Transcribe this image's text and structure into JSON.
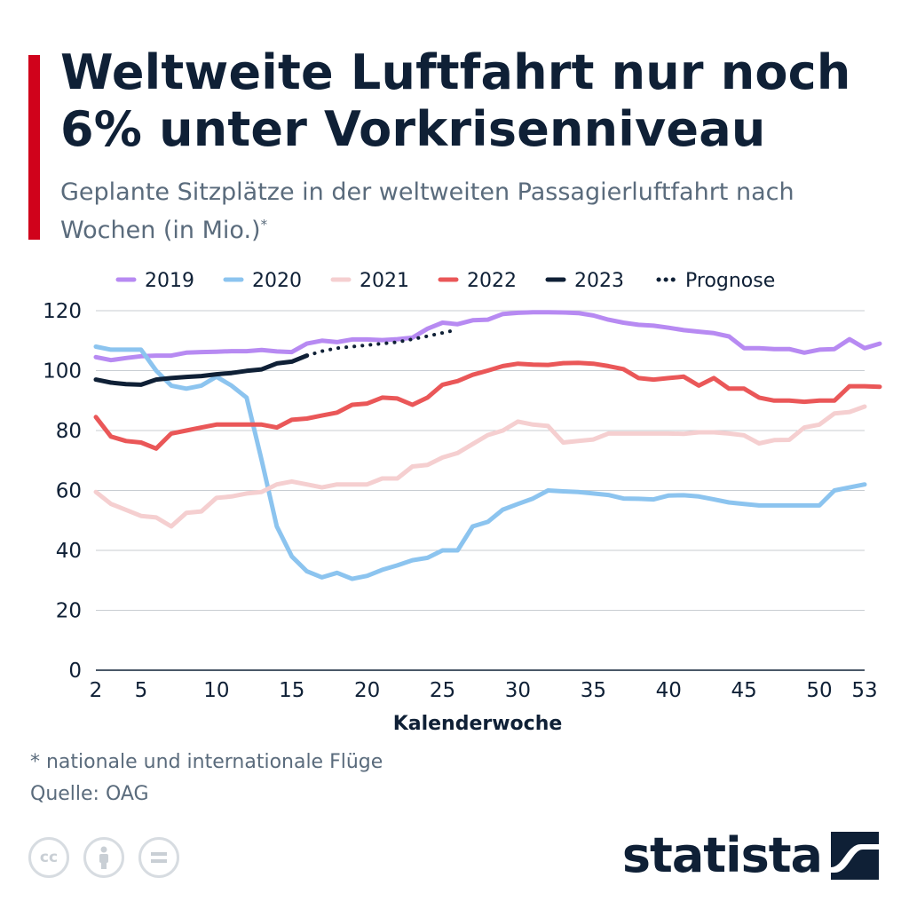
{
  "header": {
    "title": "Weltweite Luftfahrt nur noch 6% unter Vorkrisenniveau",
    "subtitle": "Geplante Sitzplätze in der weltweiten Passagierluftfahrt nach Wochen (in Mio.)",
    "subtitle_marker": "*"
  },
  "footer": {
    "footnote": "* nationale und internationale Flüge",
    "source": "Quelle: OAG",
    "brand": "statista",
    "license_icons": [
      "cc",
      "by",
      "nd"
    ]
  },
  "colors": {
    "accent": "#d0021b",
    "2019": "#b78af2",
    "2020": "#8cc4ef",
    "2021": "#f5cfd0",
    "2022": "#ea5758",
    "2023": "#0f2036",
    "Prognose": "#0f2036"
  },
  "chart_data": {
    "type": "line",
    "title": "Weltweite Luftfahrt nur noch 6% unter Vorkrisenniveau",
    "xlabel": "Kalenderwoche",
    "ylabel": "",
    "xlim": [
      2,
      53
    ],
    "ylim": [
      0,
      120
    ],
    "grid": true,
    "legend_position": "top",
    "x_ticks": [
      2,
      5,
      10,
      15,
      20,
      25,
      30,
      35,
      40,
      45,
      50,
      53
    ],
    "y_ticks": [
      0,
      20,
      40,
      60,
      80,
      100,
      120
    ],
    "series": [
      {
        "name": "2019",
        "x_start": 2,
        "values": [
          104.5,
          103.5,
          104.2,
          104.8,
          105,
          105,
          106,
          106.2,
          106.3,
          106.5,
          106.5,
          106.9,
          106.4,
          106.2,
          109,
          110,
          109.5,
          110.4,
          110.4,
          110.2,
          110.5,
          111,
          114,
          116,
          115.5,
          116.8,
          117,
          118.9,
          119.3,
          119.5,
          119.5,
          119.4,
          119.2,
          118.4,
          117,
          116,
          115.3,
          115,
          114.3,
          113.5,
          113,
          112.5,
          111.4,
          107.5,
          107.5,
          107.2,
          107.2,
          106,
          107,
          107.2,
          110.5,
          107.5,
          109
        ]
      },
      {
        "name": "2020",
        "x_start": 2,
        "values": [
          108,
          107,
          107,
          107,
          100,
          95,
          94,
          95,
          98,
          95,
          91,
          70,
          48,
          38,
          33,
          31,
          32.5,
          30.5,
          31.5,
          33.5,
          35,
          36.7,
          37.5,
          40,
          40,
          48,
          49.5,
          53.6,
          55.5,
          57.3,
          60,
          59.7,
          59.5,
          59,
          58.5,
          57.3,
          57.2,
          57,
          58.3,
          58.4,
          58,
          57,
          56,
          55.5,
          55,
          55,
          55,
          55,
          55,
          60,
          61,
          62
        ]
      },
      {
        "name": "2021",
        "x_start": 2,
        "values": [
          59.5,
          55.5,
          53.5,
          51.5,
          51,
          48,
          52.5,
          53,
          57.5,
          58,
          59,
          59.5,
          62,
          63,
          62,
          61,
          62,
          62,
          62,
          64,
          64,
          68,
          68.5,
          71,
          72.5,
          75.5,
          78.5,
          80,
          83,
          82,
          81.5,
          76,
          76.5,
          77,
          79,
          79,
          79,
          79,
          79,
          78.9,
          79.4,
          79.4,
          79,
          78.4,
          75.7,
          76.8,
          76.9,
          81,
          82,
          85.7,
          86.2,
          88
        ]
      },
      {
        "name": "2022",
        "x_start": 2,
        "values": [
          84.5,
          78,
          76.5,
          76,
          74,
          79,
          80,
          81,
          82,
          82,
          82,
          82,
          81,
          83.6,
          84,
          85,
          86,
          88.6,
          89,
          91,
          90.7,
          88.6,
          91,
          95.3,
          96.5,
          98.6,
          100,
          101.5,
          102.3,
          102,
          101.9,
          102.5,
          102.6,
          102.3,
          101.5,
          100.5,
          97.5,
          97,
          97.5,
          98,
          95,
          97.5,
          94,
          94,
          91,
          90,
          90,
          89.6,
          90,
          90,
          94.8,
          94.8,
          94.6
        ]
      },
      {
        "name": "2023",
        "x_start": 2,
        "values": [
          97,
          96,
          95.5,
          95.3,
          97,
          97.5,
          97.9,
          98.2,
          98.8,
          99.2,
          99.9,
          100.4,
          102.4,
          103,
          105
        ]
      },
      {
        "name": "Prognose",
        "x_start": 16,
        "values": [
          105,
          106.5,
          107.5,
          108,
          108.5,
          109,
          109.5,
          110.5,
          111.5,
          112.6,
          113.7
        ]
      }
    ]
  }
}
